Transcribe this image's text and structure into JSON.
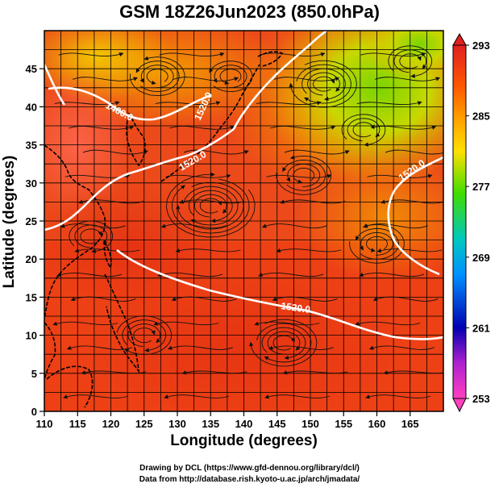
{
  "title": "GSM 18Z26Jun2023 (850.0hPa)",
  "x_axis": {
    "label": "Longitude (degrees)",
    "range": [
      110,
      170
    ],
    "ticks": [
      "110",
      "115",
      "120",
      "125",
      "130",
      "135",
      "140",
      "145",
      "150",
      "155",
      "160",
      "165"
    ]
  },
  "y_axis": {
    "label": "Latitude  (degrees)",
    "range": [
      0,
      50
    ],
    "ticks": [
      "0",
      "5",
      "10",
      "15",
      "20",
      "25",
      "30",
      "35",
      "40",
      "45"
    ]
  },
  "colorbar": {
    "labels": [
      "293",
      "285",
      "277",
      "269",
      "261",
      "253"
    ],
    "range": [
      253,
      293
    ],
    "colors": [
      "#e02020",
      "#ff7a00",
      "#ffe000",
      "#40dd00",
      "#00c0c0",
      "#0090ff",
      "#0000b0",
      "#ff40c0"
    ]
  },
  "contours": [
    {
      "label": "1400.0"
    },
    {
      "label": "1520.0"
    },
    {
      "label": "1520.0"
    },
    {
      "label": "1520.0"
    },
    {
      "label": "1520.0"
    }
  ],
  "credits": {
    "line1": "Drawing by DCL (https://www.gfd-dennou.org/library/dcl/)",
    "line2": "Data from http://database.rish.kyoto-u.ac.jp/arch/jmadata/"
  }
}
